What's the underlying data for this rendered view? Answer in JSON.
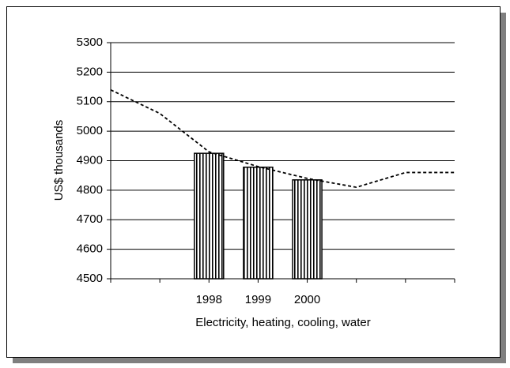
{
  "chart_data": {
    "type": "combo",
    "categories": [
      null,
      null,
      "1998",
      "1999",
      "2000",
      null,
      null,
      null
    ],
    "series": [
      {
        "type": "bar",
        "color": "#000000",
        "values": [
          null,
          null,
          4925,
          4878,
          4835,
          null,
          null,
          null
        ]
      },
      {
        "type": "line",
        "color": "#000000",
        "values": [
          5140,
          5060,
          4930,
          4880,
          4840,
          4810,
          4860,
          4860
        ]
      }
    ],
    "xlabel": "Electricity, heating, cooling, water",
    "ylabel": "US$  thousands",
    "ylim": [
      4500,
      5300
    ],
    "yticks": [
      4500,
      4600,
      4700,
      4800,
      4900,
      5000,
      5100,
      5200,
      5300
    ],
    "grid": true
  }
}
